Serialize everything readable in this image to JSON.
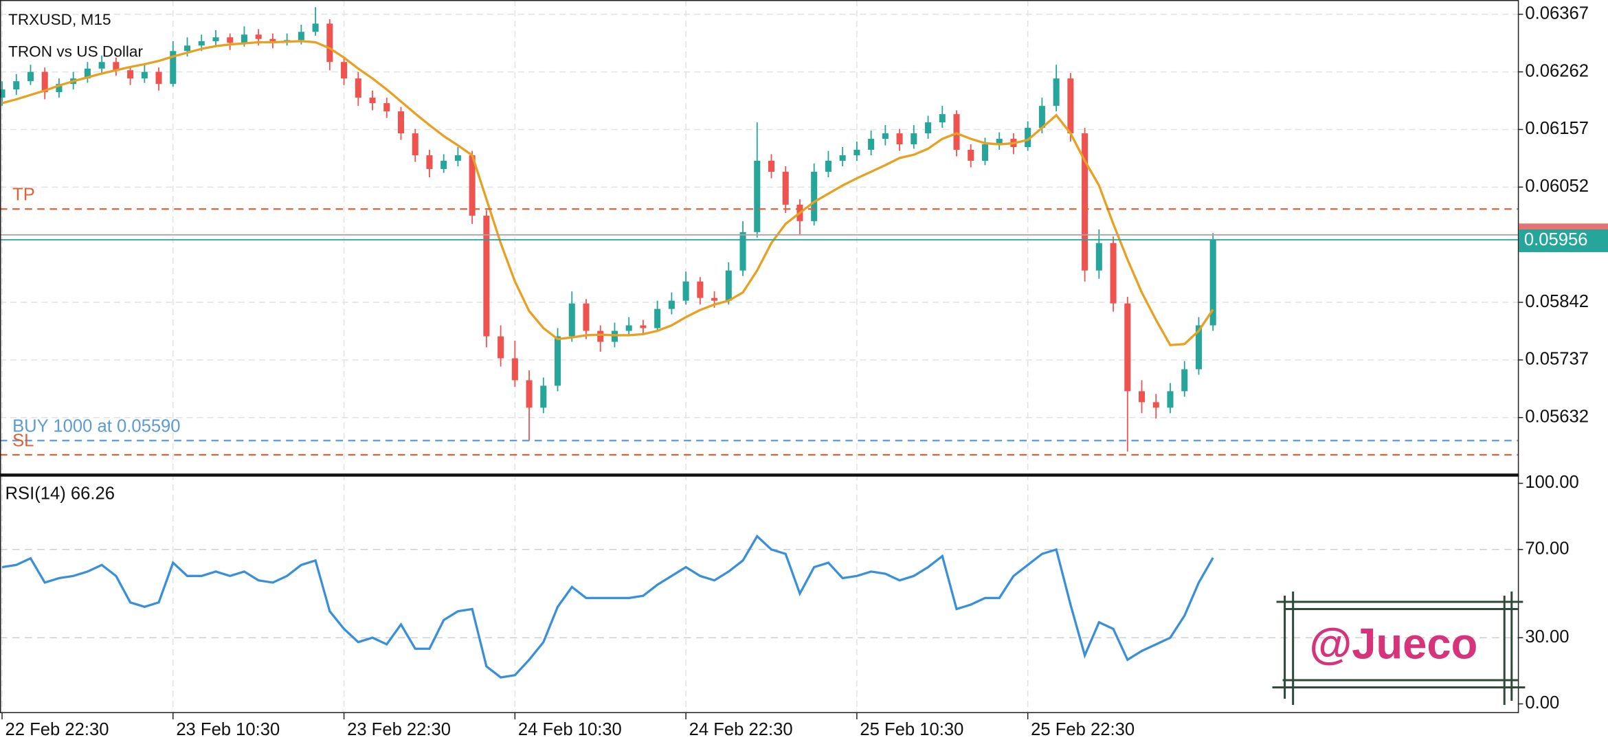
{
  "chart_data": [
    {
      "type": "candlestick",
      "title": "TRXUSD, M15",
      "subtitle": "TRON vs US Dollar",
      "up_color": "#26a69a",
      "down_color": "#ef5350",
      "ohlc": [
        [
          0.06215,
          0.06245,
          0.062,
          0.0623
        ],
        [
          0.0623,
          0.06258,
          0.0622,
          0.06245
        ],
        [
          0.06245,
          0.06275,
          0.06238,
          0.06262
        ],
        [
          0.06262,
          0.0627,
          0.06212,
          0.06225
        ],
        [
          0.06225,
          0.0625,
          0.06215,
          0.0624
        ],
        [
          0.0624,
          0.06262,
          0.0623,
          0.0625
        ],
        [
          0.0625,
          0.0628,
          0.06242,
          0.06268
        ],
        [
          0.06268,
          0.06292,
          0.0626,
          0.0628
        ],
        [
          0.0628,
          0.06288,
          0.06255,
          0.06265
        ],
        [
          0.06265,
          0.06272,
          0.06238,
          0.0625
        ],
        [
          0.0625,
          0.06275,
          0.06242,
          0.06262
        ],
        [
          0.06262,
          0.0627,
          0.06228,
          0.0624
        ],
        [
          0.0624,
          0.06318,
          0.06235,
          0.063
        ],
        [
          0.063,
          0.06325,
          0.0629,
          0.0631
        ],
        [
          0.0631,
          0.0633,
          0.063,
          0.06318
        ],
        [
          0.06318,
          0.06338,
          0.06308,
          0.06325
        ],
        [
          0.06325,
          0.06332,
          0.06302,
          0.06315
        ],
        [
          0.06315,
          0.06345,
          0.06308,
          0.0633
        ],
        [
          0.0633,
          0.0634,
          0.0631,
          0.06322
        ],
        [
          0.06322,
          0.06332,
          0.06305,
          0.06318
        ],
        [
          0.06318,
          0.06332,
          0.0631,
          0.0632
        ],
        [
          0.0632,
          0.06348,
          0.06312,
          0.06335
        ],
        [
          0.06335,
          0.0638,
          0.06328,
          0.0635
        ],
        [
          0.0635,
          0.06358,
          0.06265,
          0.0628
        ],
        [
          0.0628,
          0.0629,
          0.06238,
          0.0625
        ],
        [
          0.0625,
          0.06262,
          0.062,
          0.06215
        ],
        [
          0.06215,
          0.06228,
          0.06192,
          0.06205
        ],
        [
          0.06205,
          0.06215,
          0.06178,
          0.0619
        ],
        [
          0.0619,
          0.06198,
          0.06138,
          0.0615
        ],
        [
          0.0615,
          0.06158,
          0.06098,
          0.0611
        ],
        [
          0.0611,
          0.0612,
          0.0607,
          0.06085
        ],
        [
          0.06085,
          0.06112,
          0.06078,
          0.061
        ],
        [
          0.061,
          0.06125,
          0.0609,
          0.0611
        ],
        [
          0.0611,
          0.06118,
          0.05985,
          0.06
        ],
        [
          0.06,
          0.0601,
          0.0576,
          0.0578
        ],
        [
          0.0578,
          0.058,
          0.05725,
          0.0574
        ],
        [
          0.0574,
          0.05772,
          0.05688,
          0.057
        ],
        [
          0.057,
          0.05718,
          0.0559,
          0.0565
        ],
        [
          0.0565,
          0.05705,
          0.0564,
          0.0569
        ],
        [
          0.0569,
          0.05795,
          0.0568,
          0.0578
        ],
        [
          0.0578,
          0.05862,
          0.0577,
          0.0584
        ],
        [
          0.0584,
          0.05848,
          0.05775,
          0.0579
        ],
        [
          0.0579,
          0.058,
          0.05752,
          0.0577
        ],
        [
          0.0577,
          0.05805,
          0.0576,
          0.0579
        ],
        [
          0.0579,
          0.05815,
          0.0578,
          0.058
        ],
        [
          0.058,
          0.0581,
          0.05785,
          0.05795
        ],
        [
          0.05795,
          0.05845,
          0.05788,
          0.0583
        ],
        [
          0.0583,
          0.0586,
          0.0582,
          0.05845
        ],
        [
          0.05845,
          0.05898,
          0.05838,
          0.0588
        ],
        [
          0.0588,
          0.05888,
          0.05838,
          0.0585
        ],
        [
          0.0585,
          0.05862,
          0.05832,
          0.05845
        ],
        [
          0.05845,
          0.05915,
          0.05838,
          0.059
        ],
        [
          0.059,
          0.0599,
          0.0589,
          0.0597
        ],
        [
          0.0597,
          0.0617,
          0.0596,
          0.061
        ],
        [
          0.061,
          0.06112,
          0.06068,
          0.0608
        ],
        [
          0.0608,
          0.0609,
          0.06005,
          0.0602
        ],
        [
          0.0602,
          0.0603,
          0.05965,
          0.0599
        ],
        [
          0.0599,
          0.06095,
          0.05982,
          0.0608
        ],
        [
          0.0608,
          0.06118,
          0.0607,
          0.061
        ],
        [
          0.061,
          0.06125,
          0.0609,
          0.0611
        ],
        [
          0.0611,
          0.06135,
          0.061,
          0.0612
        ],
        [
          0.0612,
          0.06155,
          0.0611,
          0.0614
        ],
        [
          0.0614,
          0.06165,
          0.06128,
          0.0615
        ],
        [
          0.0615,
          0.06158,
          0.06118,
          0.0613
        ],
        [
          0.0613,
          0.06165,
          0.06122,
          0.0615
        ],
        [
          0.0615,
          0.06182,
          0.0614,
          0.0617
        ],
        [
          0.0617,
          0.062,
          0.0616,
          0.06185
        ],
        [
          0.06185,
          0.06192,
          0.06108,
          0.0612
        ],
        [
          0.0612,
          0.0613,
          0.06088,
          0.061
        ],
        [
          0.061,
          0.06142,
          0.06092,
          0.0613
        ],
        [
          0.0613,
          0.06152,
          0.0612,
          0.0614
        ],
        [
          0.0614,
          0.0615,
          0.06112,
          0.06125
        ],
        [
          0.06125,
          0.06172,
          0.06118,
          0.0616
        ],
        [
          0.0616,
          0.06215,
          0.0615,
          0.062
        ],
        [
          0.062,
          0.06275,
          0.0619,
          0.0625
        ],
        [
          0.0625,
          0.0626,
          0.06135,
          0.0615
        ],
        [
          0.0615,
          0.0616,
          0.0588,
          0.059
        ],
        [
          0.059,
          0.05975,
          0.05885,
          0.0595
        ],
        [
          0.0595,
          0.05962,
          0.05825,
          0.0584
        ],
        [
          0.0584,
          0.05852,
          0.0557,
          0.0568
        ],
        [
          0.0568,
          0.057,
          0.0564,
          0.0566
        ],
        [
          0.0566,
          0.05675,
          0.0563,
          0.0565
        ],
        [
          0.0565,
          0.05695,
          0.0564,
          0.0568
        ],
        [
          0.0568,
          0.05735,
          0.0567,
          0.0572
        ],
        [
          0.0572,
          0.05815,
          0.0571,
          0.058
        ],
        [
          0.058,
          0.05968,
          0.0579,
          0.05956
        ]
      ],
      "ma": {
        "color": "#e8a020",
        "values": [
          0.06205,
          0.06212,
          0.0622,
          0.06228,
          0.06237,
          0.06245,
          0.06252,
          0.06259,
          0.06265,
          0.06271,
          0.06276,
          0.06282,
          0.0629,
          0.06297,
          0.06304,
          0.06309,
          0.06312,
          0.06314,
          0.06316,
          0.06316,
          0.06317,
          0.06318,
          0.06316,
          0.06305,
          0.06288,
          0.06268,
          0.0625,
          0.0623,
          0.06208,
          0.06186,
          0.06165,
          0.06145,
          0.06128,
          0.0611,
          0.0603,
          0.0595,
          0.0588,
          0.05826,
          0.05795,
          0.05775,
          0.05778,
          0.05782,
          0.05783,
          0.05782,
          0.05782,
          0.05784,
          0.0579,
          0.058,
          0.05815,
          0.05828,
          0.05838,
          0.05845,
          0.0586,
          0.059,
          0.0595,
          0.05985,
          0.06005,
          0.06025,
          0.0604,
          0.06055,
          0.06068,
          0.0608,
          0.06092,
          0.06105,
          0.06111,
          0.06122,
          0.0614,
          0.0615,
          0.0614,
          0.06132,
          0.0613,
          0.06132,
          0.06138,
          0.0616,
          0.06183,
          0.0615,
          0.061,
          0.06055,
          0.05985,
          0.0592,
          0.0586,
          0.0581,
          0.05764,
          0.05766,
          0.0579,
          0.05829
        ]
      },
      "ylim": [
        0.05529,
        0.06393
      ],
      "yticks": [
        0.06367,
        0.06262,
        0.06157,
        0.06052,
        0.05842,
        0.05737,
        0.05632
      ],
      "grid": true,
      "levels": [
        {
          "label": "TP",
          "value": 0.06012,
          "color": "#e0603a"
        },
        {
          "label": "BUY 1000 at 0.05590",
          "value": 0.0559,
          "color": "#5b9bd5"
        },
        {
          "label": "SL",
          "value": 0.05564,
          "color": "#e0603a"
        }
      ],
      "ask": {
        "value": 0.05965,
        "color": "#e57373"
      },
      "last_price": {
        "value": 0.05956,
        "color": "#26a69a"
      }
    },
    {
      "type": "line",
      "title": "RSI(14) 66.26",
      "series": [
        {
          "color": "#3a8fd9",
          "values": [
            62,
            63,
            66,
            55,
            57,
            58,
            60,
            63,
            58,
            46,
            44,
            46,
            64,
            58,
            58,
            60,
            58,
            60,
            56,
            55,
            58,
            63,
            65,
            42,
            34,
            28,
            30,
            27,
            36,
            25,
            25,
            38,
            42,
            43,
            17,
            12,
            13,
            20,
            28,
            44,
            53,
            48,
            48,
            48,
            48,
            49,
            54,
            58,
            62,
            58,
            56,
            60,
            65,
            76,
            70,
            68,
            50,
            62,
            64,
            57,
            58,
            60,
            59,
            56,
            58,
            62,
            67,
            43,
            45,
            48,
            48,
            58,
            63,
            68,
            70,
            45,
            22,
            37,
            34,
            20,
            24,
            27,
            30,
            40,
            55,
            66.26
          ]
        }
      ],
      "ylim": [
        0,
        100
      ],
      "yticks": [
        {
          "value": 100,
          "label": "100.00"
        },
        {
          "value": 70,
          "label": "70.00"
        },
        {
          "value": 30,
          "label": "30.00"
        },
        {
          "value": 0,
          "label": "0.00"
        }
      ],
      "grid_values": [
        70,
        30
      ],
      "xlim": [
        0,
        106
      ],
      "xticks": [
        {
          "value": 0,
          "label": "22 Feb 22:30"
        },
        {
          "value": 12,
          "label": "23 Feb 10:30"
        },
        {
          "value": 24,
          "label": "23 Feb 22:30"
        },
        {
          "value": 36,
          "label": "24 Feb 10:30"
        },
        {
          "value": 48,
          "label": "24 Feb 22:30"
        },
        {
          "value": 60,
          "label": "25 Feb 10:30"
        },
        {
          "value": 72,
          "label": "25 Feb 22:30"
        }
      ]
    }
  ],
  "watermark": "@Jueco"
}
